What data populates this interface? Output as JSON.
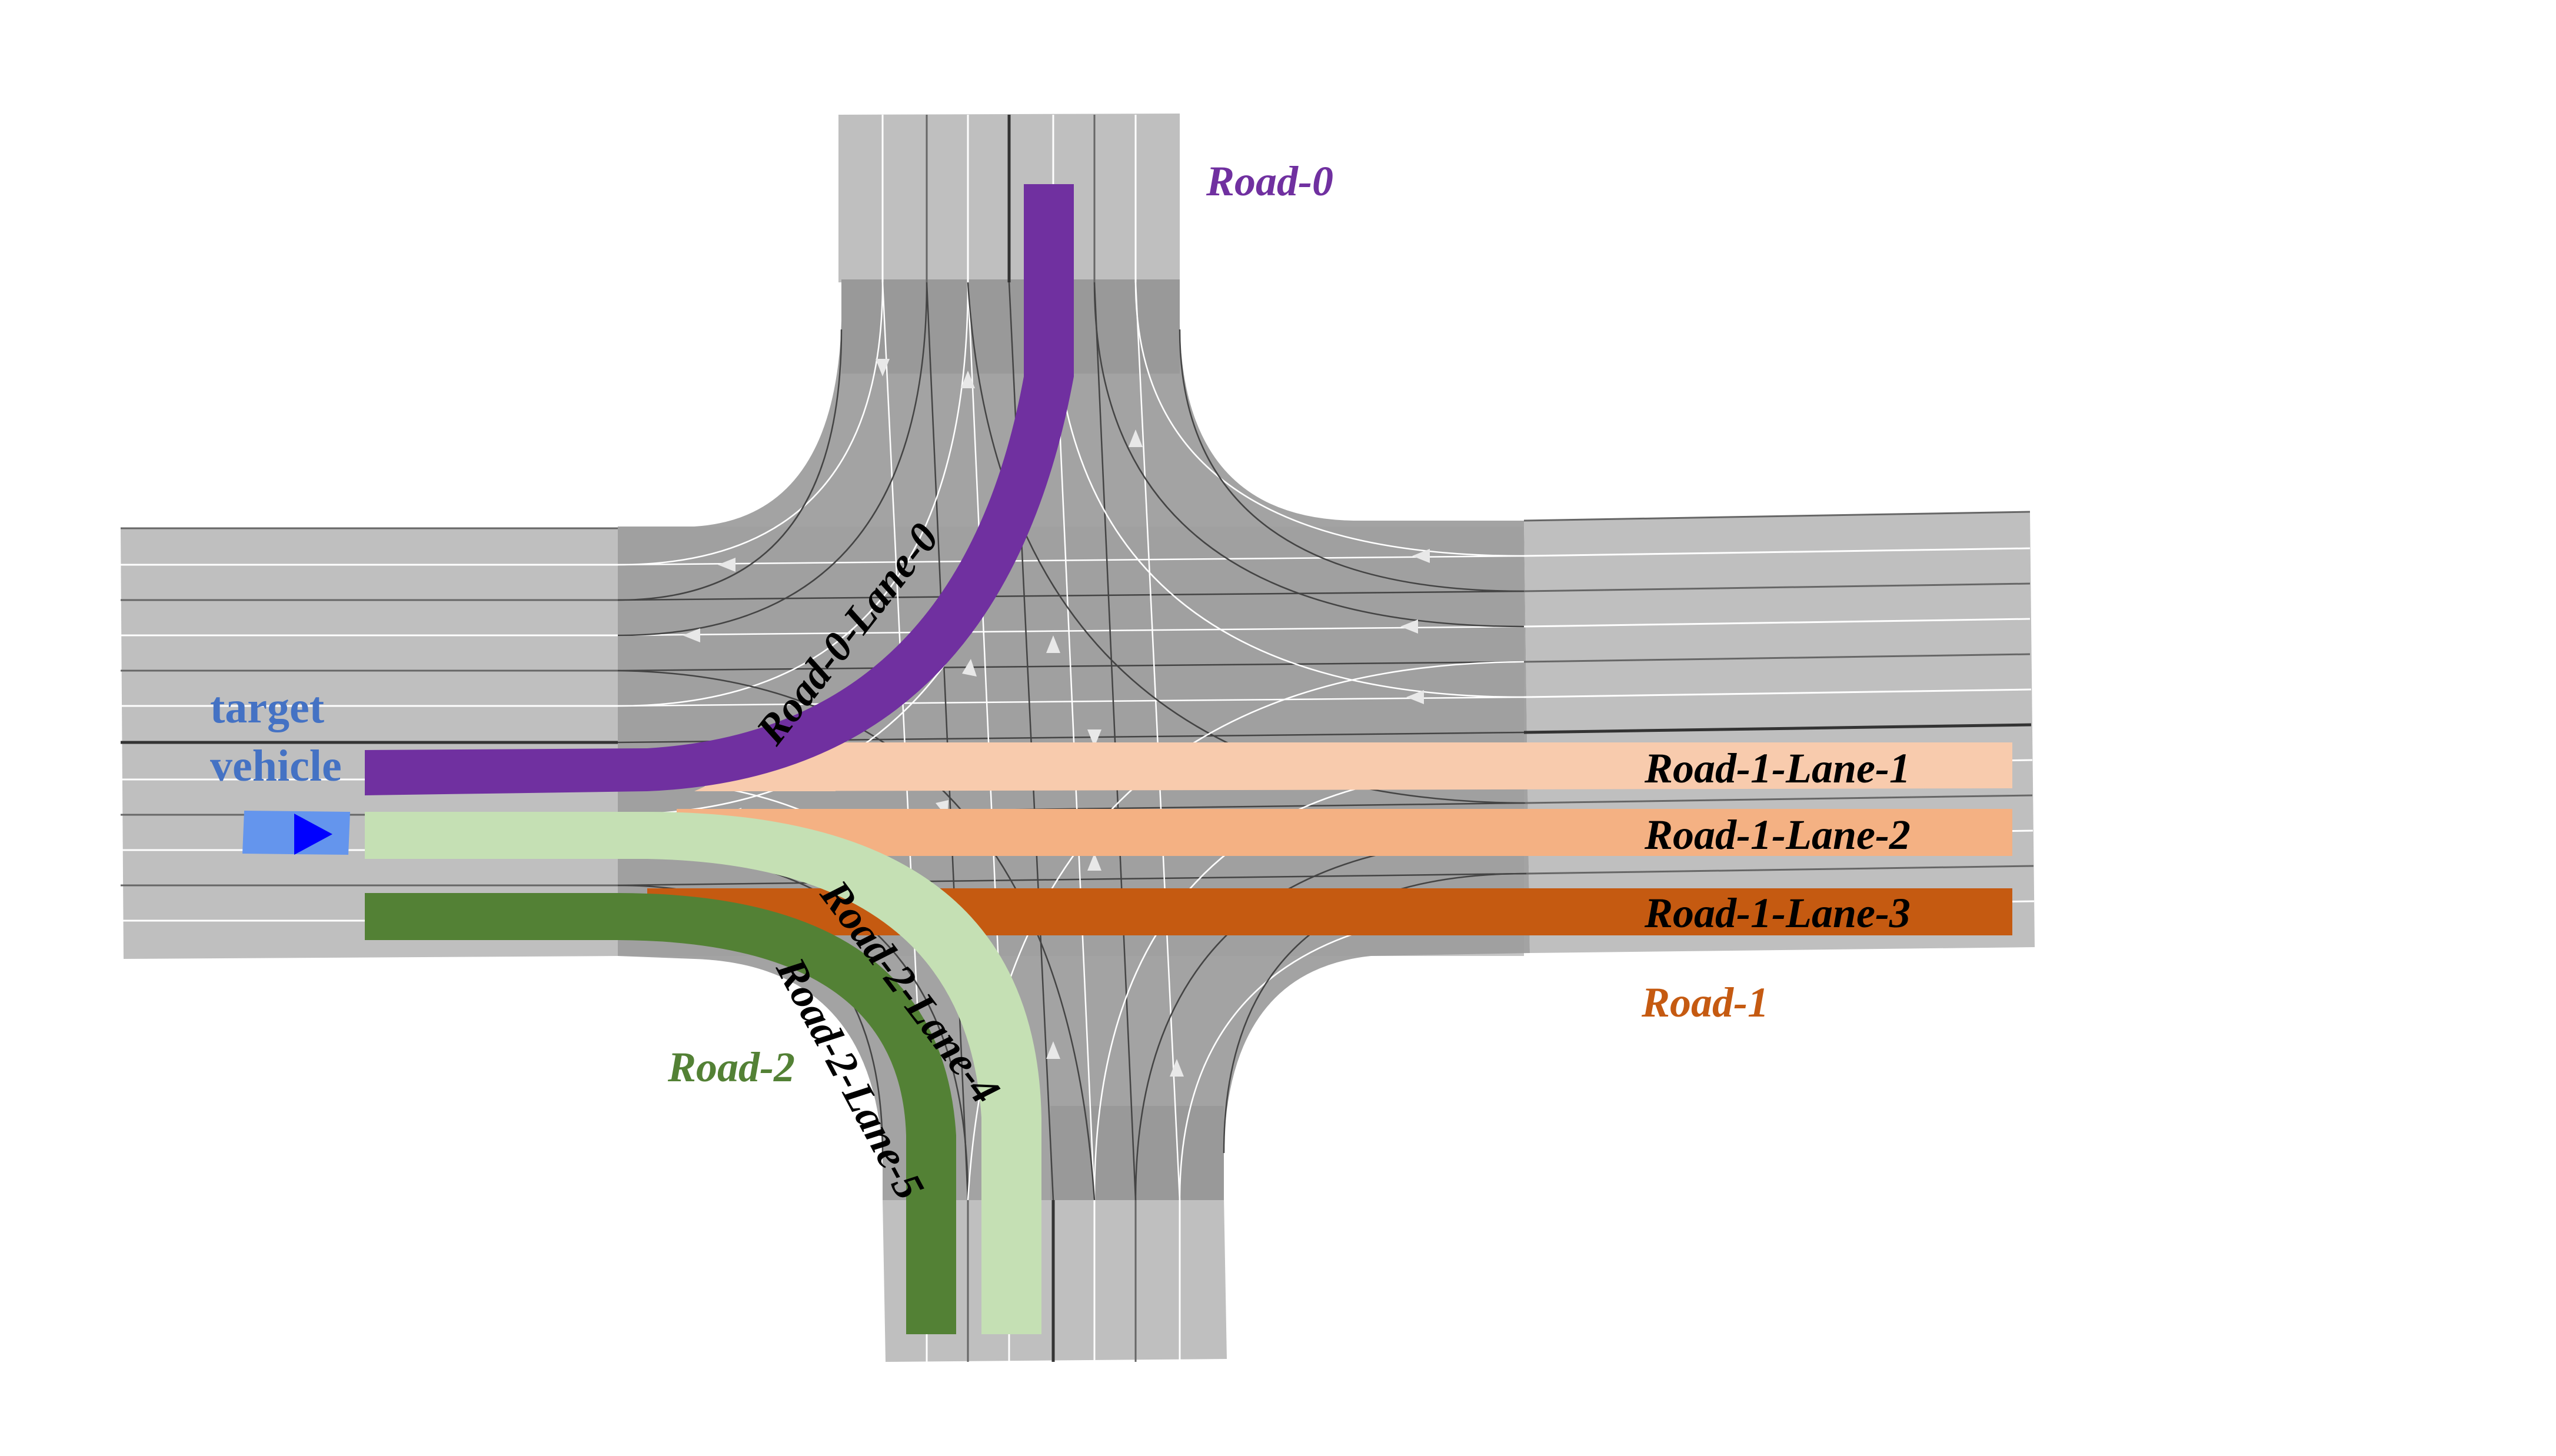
{
  "labels": {
    "road0": "Road-0",
    "road1": "Road-1",
    "road2": "Road-2",
    "target_line1": "target",
    "target_line2": "vehicle",
    "lane_road0_0": "Road-0-Lane-0",
    "lane_road1_1": "Road-1-Lane-1",
    "lane_road1_2": "Road-1-Lane-2",
    "lane_road1_3": "Road-1-Lane-3",
    "lane_road2_4": "Road-2-Lane-4",
    "lane_road2_5": "Road-2-Lane-5"
  },
  "colors": {
    "road0": "#7030a0",
    "road1": "#c55a11",
    "road2": "#538135",
    "target": "#4472c4",
    "lane1": "#f8cbad",
    "lane2": "#f4b183",
    "lane3": "#c55a11",
    "lane4": "#c5e0b4",
    "lane5": "#538135",
    "vehicle_body": "#6495ed",
    "vehicle_arrow": "#0000ff",
    "road_surface": "#bfbfbf",
    "junction_surface": "#a6a6a6",
    "lane_line_white": "#ffffff",
    "lane_line_dark": "#5a5a5a"
  },
  "icons": {
    "vehicle": "vehicle-arrow-icon"
  }
}
